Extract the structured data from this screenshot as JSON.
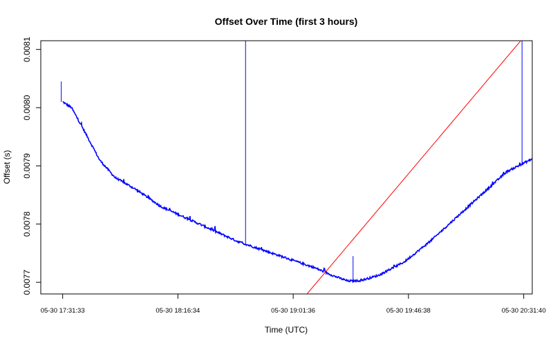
{
  "chart_data": {
    "type": "line",
    "title": "Offset Over Time (first 3 hours)",
    "xlabel": "Time (UTC)",
    "ylabel": "Offset (s)",
    "x_ticks": [
      "05-30 17:31:33",
      "05-30 18:16:34",
      "05-30 19:01:36",
      "05-30 19:46:38",
      "05-30 20:31:40"
    ],
    "y_ticks": [
      "0.0077",
      "0.0078",
      "0.0079",
      "0.0080",
      "0.0081"
    ],
    "y_tick_values": [
      0.0077,
      0.0078,
      0.0079,
      0.008,
      0.0081
    ],
    "xlim": [
      "05-30 17:23:00",
      "05-30 20:35:00"
    ],
    "ylim": [
      0.00768,
      0.008115
    ],
    "grid": false,
    "legend": "none",
    "colors": {
      "series": "#0000ff",
      "trend": "#ff0000"
    },
    "series": [
      {
        "x": [
          "05-30 17:31:33",
          "05-30 17:35:00",
          "05-30 17:40:00",
          "05-30 17:46:00",
          "05-30 17:52:00",
          "05-30 18:00:00",
          "05-30 18:10:00",
          "05-30 18:20:00",
          "05-30 18:30:00",
          "05-30 18:40:00",
          "05-30 18:50:00",
          "05-30 19:00:00",
          "05-30 19:10:00",
          "05-30 19:18:00",
          "05-30 19:23:00",
          "05-30 19:28:00",
          "05-30 19:35:00",
          "05-30 19:45:00",
          "05-30 19:55:00",
          "05-30 20:05:00",
          "05-30 20:15:00",
          "05-30 20:25:00",
          "05-30 20:35:00"
        ],
        "y": [
          0.00801,
          0.008,
          0.00796,
          0.00791,
          0.00788,
          0.00786,
          0.00783,
          0.00781,
          0.00779,
          0.00777,
          0.007755,
          0.00774,
          0.007725,
          0.00771,
          0.007702,
          0.007703,
          0.007712,
          0.007735,
          0.00777,
          0.00781,
          0.00785,
          0.00789,
          0.007912
        ]
      }
    ],
    "trend_line": {
      "x": [
        "05-30 19:07:00",
        "05-30 20:30:30"
      ],
      "y": [
        0.00768,
        0.008115
      ]
    },
    "spikes": [
      {
        "x": "05-30 17:31:00",
        "y": 0.008045
      },
      {
        "x": "05-30 18:43:00",
        "y": 0.008115
      },
      {
        "x": "05-30 19:25:00",
        "y": 0.007745
      },
      {
        "x": "05-30 20:31:00",
        "y": 0.008115
      }
    ]
  }
}
